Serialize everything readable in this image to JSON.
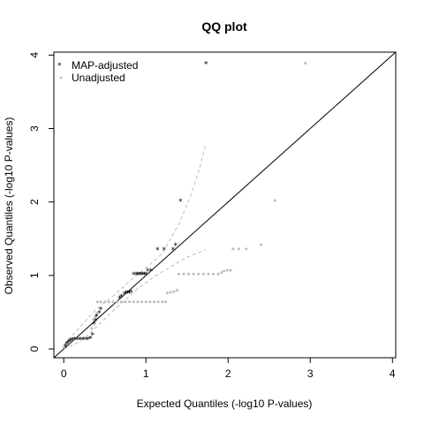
{
  "chart_data": {
    "type": "scatter",
    "title": "QQ plot",
    "xlabel": "Expected Quantiles (-log10 P-values)",
    "ylabel": "Observed Quantiles (-log10 P-values)",
    "xlim": [
      -0.12,
      4.04
    ],
    "ylim": [
      -0.12,
      4.04
    ],
    "x_ticks": [
      0,
      1,
      2,
      3,
      4
    ],
    "y_ticks": [
      0,
      1,
      2,
      3,
      4
    ],
    "grid": false,
    "legend_position": "top-left",
    "reference_line": [
      [
        -0.12,
        -0.12
      ],
      [
        4.04,
        4.04
      ]
    ],
    "colors": {
      "adjusted": "#000000",
      "unadjusted": "#bbbbbb",
      "bands": "#bbbbbb",
      "reference": "#000000"
    },
    "series": [
      {
        "name": "MAP-adjusted",
        "marker": "star",
        "points": [
          [
            0.02,
            0.04
          ],
          [
            0.04,
            0.08
          ],
          [
            0.06,
            0.1
          ],
          [
            0.08,
            0.12
          ],
          [
            0.1,
            0.13
          ],
          [
            0.13,
            0.14
          ],
          [
            0.16,
            0.14
          ],
          [
            0.2,
            0.14
          ],
          [
            0.24,
            0.14
          ],
          [
            0.28,
            0.14
          ],
          [
            0.32,
            0.15
          ],
          [
            0.35,
            0.2
          ],
          [
            0.37,
            0.35
          ],
          [
            0.39,
            0.4
          ],
          [
            0.4,
            0.45
          ],
          [
            0.43,
            0.5
          ],
          [
            0.45,
            0.55
          ],
          [
            0.68,
            0.7
          ],
          [
            0.7,
            0.72
          ],
          [
            0.74,
            0.76
          ],
          [
            0.76,
            0.77
          ],
          [
            0.78,
            0.77
          ],
          [
            0.8,
            0.77
          ],
          [
            0.82,
            0.78
          ],
          [
            0.85,
            1.02
          ],
          [
            0.88,
            1.02
          ],
          [
            0.9,
            1.02
          ],
          [
            0.92,
            1.02
          ],
          [
            0.94,
            1.02
          ],
          [
            0.96,
            1.02
          ],
          [
            0.98,
            1.02
          ],
          [
            1.0,
            1.02
          ],
          [
            1.02,
            1.07
          ],
          [
            1.06,
            1.07
          ],
          [
            1.14,
            1.36
          ],
          [
            1.22,
            1.36
          ],
          [
            1.33,
            1.36
          ],
          [
            1.36,
            1.42
          ],
          [
            1.42,
            2.02
          ],
          [
            1.73,
            3.89
          ]
        ]
      },
      {
        "name": "Unadjusted",
        "marker": "dot",
        "points": [
          [
            0.0,
            0.02
          ],
          [
            0.02,
            0.06
          ],
          [
            0.04,
            0.09
          ],
          [
            0.06,
            0.11
          ],
          [
            0.08,
            0.12
          ],
          [
            0.1,
            0.13
          ],
          [
            0.12,
            0.14
          ],
          [
            0.15,
            0.14
          ],
          [
            0.18,
            0.14
          ],
          [
            0.21,
            0.14
          ],
          [
            0.24,
            0.14
          ],
          [
            0.27,
            0.14
          ],
          [
            0.3,
            0.14
          ],
          [
            0.33,
            0.16
          ],
          [
            0.34,
            0.28
          ],
          [
            0.36,
            0.4
          ],
          [
            0.38,
            0.44
          ],
          [
            0.4,
            0.48
          ],
          [
            0.41,
            0.64
          ],
          [
            0.45,
            0.64
          ],
          [
            0.5,
            0.64
          ],
          [
            0.55,
            0.64
          ],
          [
            0.6,
            0.64
          ],
          [
            0.65,
            0.64
          ],
          [
            0.7,
            0.64
          ],
          [
            0.75,
            0.64
          ],
          [
            0.8,
            0.64
          ],
          [
            0.85,
            0.64
          ],
          [
            0.9,
            0.64
          ],
          [
            0.95,
            0.64
          ],
          [
            1.0,
            0.64
          ],
          [
            1.05,
            0.64
          ],
          [
            1.1,
            0.64
          ],
          [
            1.15,
            0.64
          ],
          [
            1.2,
            0.64
          ],
          [
            1.24,
            0.64
          ],
          [
            1.26,
            0.76
          ],
          [
            1.3,
            0.77
          ],
          [
            1.34,
            0.78
          ],
          [
            1.38,
            0.8
          ],
          [
            1.4,
            1.02
          ],
          [
            1.46,
            1.02
          ],
          [
            1.52,
            1.02
          ],
          [
            1.58,
            1.02
          ],
          [
            1.64,
            1.02
          ],
          [
            1.7,
            1.02
          ],
          [
            1.76,
            1.02
          ],
          [
            1.82,
            1.02
          ],
          [
            1.88,
            1.02
          ],
          [
            1.92,
            1.04
          ],
          [
            1.95,
            1.06
          ],
          [
            1.99,
            1.07
          ],
          [
            2.03,
            1.07
          ],
          [
            2.06,
            1.36
          ],
          [
            2.13,
            1.36
          ],
          [
            2.22,
            1.36
          ],
          [
            2.4,
            1.42
          ],
          [
            2.57,
            2.02
          ],
          [
            2.94,
            3.89
          ]
        ]
      }
    ],
    "band_lower": [
      [
        0.0,
        0.0
      ],
      [
        0.2,
        0.1
      ],
      [
        0.4,
        0.3
      ],
      [
        0.6,
        0.52
      ],
      [
        0.8,
        0.72
      ],
      [
        0.9,
        0.82
      ],
      [
        1.0,
        0.9
      ],
      [
        1.1,
        0.98
      ],
      [
        1.2,
        1.05
      ],
      [
        1.35,
        1.15
      ],
      [
        1.5,
        1.25
      ],
      [
        1.73,
        1.35
      ]
    ],
    "band_upper": [
      [
        0.0,
        0.06
      ],
      [
        0.2,
        0.3
      ],
      [
        0.4,
        0.55
      ],
      [
        0.6,
        0.72
      ],
      [
        0.8,
        0.92
      ],
      [
        1.0,
        1.1
      ],
      [
        1.2,
        1.3
      ],
      [
        1.4,
        1.7
      ],
      [
        1.55,
        2.1
      ],
      [
        1.65,
        2.45
      ],
      [
        1.73,
        2.8
      ]
    ]
  }
}
